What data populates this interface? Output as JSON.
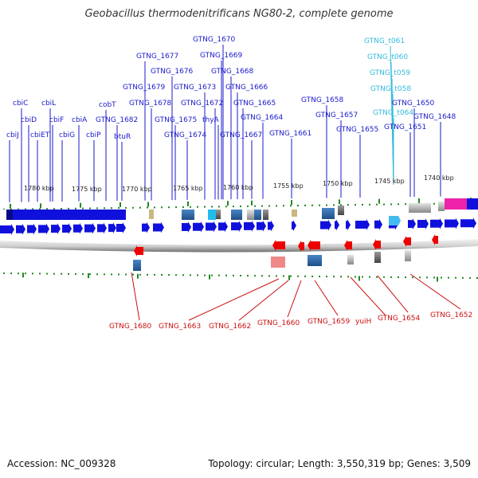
{
  "title": "Geobacillus thermodenitrificans NG80-2, complete genome",
  "footer": {
    "accession": "Accession: NC_009328",
    "summary": "Topology: circular; Length: 3,550,319 bp; Genes: 3,509"
  },
  "colors": {
    "forward_label": "#1a1acc",
    "reverse_label": "#cc1010",
    "rna_label": "#33bbdd",
    "forward_gene": "#1010dd",
    "reverse_gene": "#ee0000",
    "tick": "#228822",
    "backbone": "#888888"
  },
  "scale_labels": [
    "1780 kbp",
    "1775 kbp",
    "1770 kbp",
    "1765 kbp",
    "1760 kbp",
    "1755 kbp",
    "1750 kbp",
    "1745 kbp",
    "1740 kbp"
  ],
  "forward_labels": [
    "cbiJ",
    "cbiC",
    "cbiD",
    "cbiET",
    "cbiL",
    "cbiF",
    "cbiG",
    "cbiA",
    "cbiP",
    "cobT",
    "GTNG_1682",
    "btuR",
    "GTNG_1679",
    "GTNG_1677",
    "GTNG_1676",
    "GTNG_1678",
    "GTNG_1675",
    "GTNG_1674",
    "GTNG_1673",
    "GTNG_1672",
    "thyA",
    "GTNG_1670",
    "GTNG_1669",
    "GTNG_1668",
    "GTNG_1666",
    "GTNG_1667",
    "GTNG_1665",
    "GTNG_1664",
    "GTNG_1661",
    "GTNG_1658",
    "GTNG_1657",
    "GTNG_1655",
    "GTNG_1651",
    "GTNG_1650",
    "GTNG_1648"
  ],
  "rna_labels": [
    "GTNG_t061",
    "GTNG_t060",
    "GTNG_t059",
    "GTNG_t058",
    "GTNG_t064"
  ],
  "reverse_labels": [
    "GTNG_1680",
    "GTNG_1663",
    "GTNG_1662",
    "GTNG_1660",
    "GTNG_1659",
    "yuiH",
    "GTNG_1654",
    "GTNG_1652"
  ]
}
